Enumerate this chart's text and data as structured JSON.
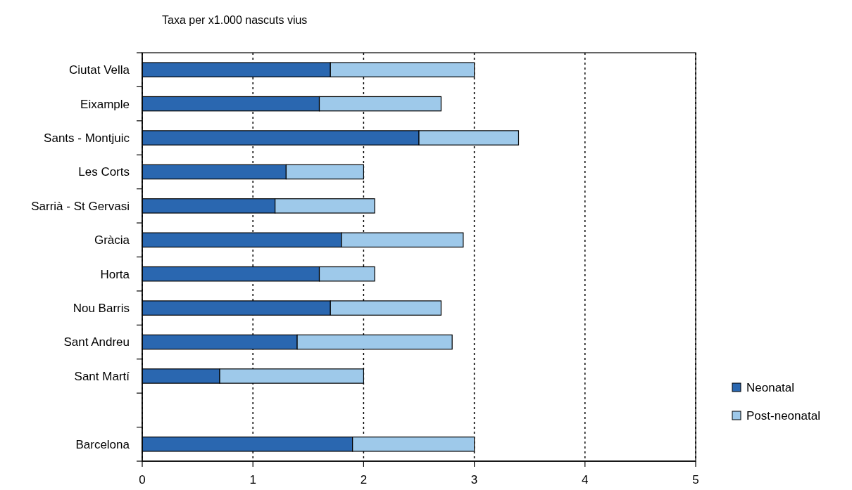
{
  "chart_data": {
    "type": "bar",
    "orientation": "horizontal",
    "stacked": true,
    "title": "Taxa per x1.000 nascuts vius",
    "categories": [
      "Ciutat Vella",
      "Eixample",
      "Sants - Montjuic",
      "Les Corts",
      "Sarrià - St Gervasi",
      "Gràcia",
      "Horta",
      "Nou Barris",
      "Sant Andreu",
      "Sant Martí",
      null,
      "Barcelona"
    ],
    "series": [
      {
        "name": "Neonatal",
        "color": "#2a67b0",
        "values": [
          1.7,
          1.6,
          2.5,
          1.3,
          1.2,
          1.8,
          1.6,
          1.7,
          1.4,
          0.7,
          null,
          1.9
        ]
      },
      {
        "name": "Post-neonatal",
        "color": "#9ec9ea",
        "values": [
          1.3,
          1.1,
          0.9,
          0.7,
          0.9,
          1.1,
          0.5,
          1.0,
          1.4,
          1.3,
          null,
          1.1
        ]
      }
    ],
    "xlim": [
      0,
      5
    ],
    "xticks": [
      0,
      1,
      2,
      3,
      4,
      5
    ],
    "grid": "x",
    "legend": "right"
  }
}
